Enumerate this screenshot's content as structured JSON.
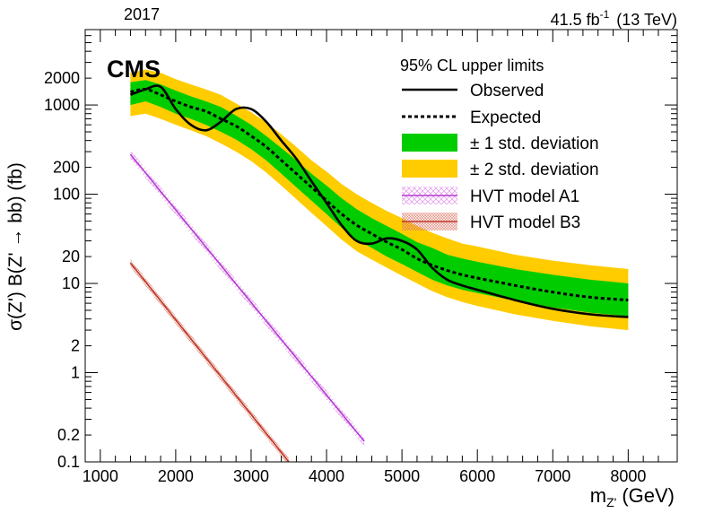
{
  "header": {
    "year": "2017",
    "lumi": "41.5 fb",
    "lumi_exp": "-1",
    "energy": "(13 TeV)",
    "experiment": "CMS"
  },
  "chart_data": {
    "type": "line",
    "title": "",
    "xlabel": "m",
    "xlabel_sub": "Z'",
    "xlabel_unit": "(GeV)",
    "ylabel": "σ(Z') B(Z' → bb) (fb)",
    "xlim": [
      800,
      8650
    ],
    "ylim": [
      0.1,
      7000
    ],
    "yscale": "log",
    "grid": false,
    "x_ticks": [
      1000,
      2000,
      3000,
      4000,
      5000,
      6000,
      7000,
      8000
    ],
    "x_tick_labels": [
      "1000",
      "2000",
      "3000",
      "4000",
      "5000",
      "6000",
      "7000",
      "8000"
    ],
    "y_ticks": [
      0.1,
      0.2,
      1,
      2,
      10,
      20,
      100,
      200,
      1000,
      2000
    ],
    "y_tick_labels": [
      "0.1",
      "0.2",
      "1",
      "2",
      "10",
      "20",
      "100",
      "200",
      "1000",
      "2000"
    ],
    "legend": {
      "title": "95% CL upper limits",
      "position": "top-right",
      "entries": [
        {
          "key": "observed",
          "label": "Observed"
        },
        {
          "key": "expected",
          "label": "Expected"
        },
        {
          "key": "band1",
          "label": "± 1 std. deviation"
        },
        {
          "key": "band2",
          "label": "± 2 std. deviation"
        },
        {
          "key": "a1",
          "label": "HVT model A1"
        },
        {
          "key": "b3",
          "label": "HVT model B3"
        }
      ]
    },
    "colors": {
      "observed": "#000000",
      "expected": "#000000",
      "band1": "#00cc00",
      "band2": "#ffcc00",
      "a1": "#b43cd2",
      "a1_band": "#e6a0ee",
      "b3": "#c0392b",
      "b3_band": "#e08070"
    },
    "x": [
      1400,
      1600,
      1800,
      2000,
      2200,
      2400,
      2600,
      2800,
      3000,
      3200,
      3400,
      3600,
      3800,
      4000,
      4200,
      4400,
      4600,
      4800,
      5000,
      5200,
      5400,
      5600,
      5800,
      6000,
      6500,
      7000,
      7500,
      8000
    ],
    "series": [
      {
        "key": "observed",
        "name": "Observed",
        "values": [
          1300,
          1500,
          1600,
          900,
          600,
          520,
          650,
          900,
          900,
          650,
          400,
          250,
          140,
          80,
          45,
          30,
          28,
          32,
          30,
          24,
          15,
          11,
          9.5,
          8.5,
          6.5,
          5.2,
          4.5,
          4.2
        ]
      },
      {
        "key": "expected",
        "name": "Expected",
        "values": [
          1400,
          1500,
          1300,
          1100,
          950,
          850,
          700,
          580,
          450,
          340,
          240,
          170,
          120,
          85,
          60,
          45,
          36,
          29,
          24,
          19,
          16,
          14,
          12.5,
          11.5,
          9.5,
          8.0,
          7.0,
          6.5
        ]
      },
      {
        "key": "band1_hi",
        "values": [
          1800,
          1900,
          1700,
          1450,
          1250,
          1100,
          950,
          760,
          600,
          450,
          330,
          240,
          170,
          125,
          90,
          68,
          54,
          44,
          36,
          29,
          25,
          21,
          19,
          17.5,
          14.5,
          12.5,
          11,
          10
        ]
      },
      {
        "key": "band1_lo",
        "values": [
          1000,
          1100,
          950,
          800,
          700,
          600,
          500,
          410,
          320,
          240,
          170,
          120,
          85,
          60,
          42,
          31,
          25,
          20,
          16.5,
          13.5,
          11,
          9.5,
          8.5,
          7.8,
          6.4,
          5.4,
          4.7,
          4.3
        ]
      },
      {
        "key": "band2_hi",
        "values": [
          2300,
          2500,
          2300,
          1950,
          1700,
          1500,
          1300,
          1040,
          830,
          640,
          470,
          340,
          240,
          180,
          130,
          100,
          80,
          65,
          54,
          44,
          37,
          32,
          28,
          26,
          21,
          18,
          16,
          14.5
        ]
      },
      {
        "key": "band2_lo",
        "values": [
          750,
          800,
          700,
          600,
          520,
          450,
          370,
          300,
          235,
          175,
          125,
          88,
          62,
          44,
          31,
          23,
          18.5,
          15,
          12.2,
          10,
          8.2,
          7,
          6.2,
          5.6,
          4.5,
          3.8,
          3.3,
          3.0
        ]
      }
    ],
    "models": [
      {
        "key": "a1",
        "name": "HVT model A1",
        "x": [
          1400,
          4500
        ],
        "values": [
          280,
          0.17
        ],
        "band_frac": 0.12
      },
      {
        "key": "b3",
        "name": "HVT model B3",
        "x": [
          1400,
          3500
        ],
        "values": [
          17,
          0.1
        ],
        "band_frac": 0.1
      }
    ]
  }
}
